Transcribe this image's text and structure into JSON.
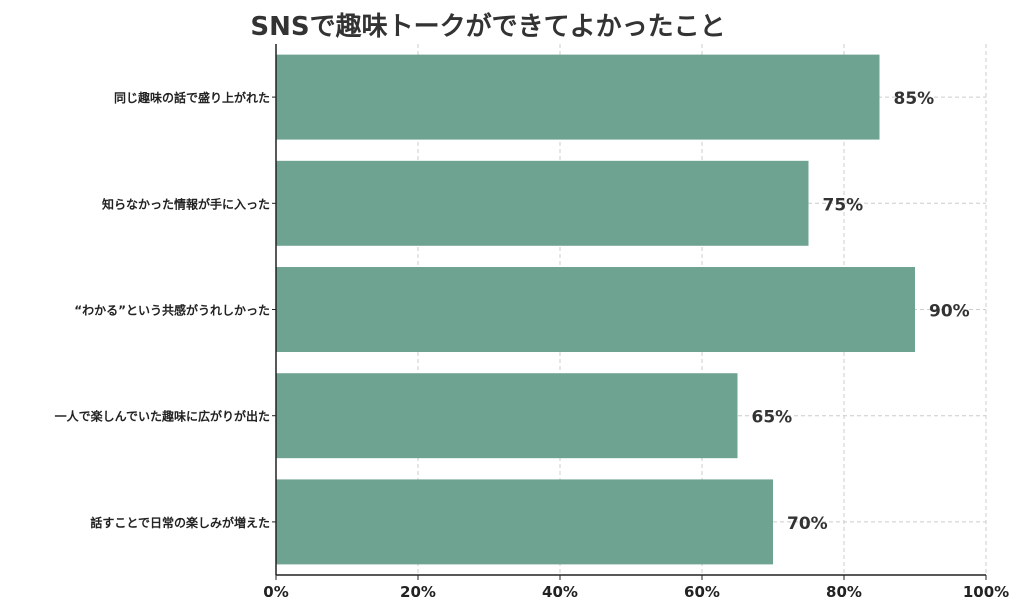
{
  "chart_data": {
    "type": "bar",
    "orientation": "horizontal",
    "title": "SNSで趣味トークができてよかったこと",
    "xlabel": "",
    "ylabel": "",
    "categories": [
      "同じ趣味の話で盛り上がれた",
      "知らなかった情報が手に入った",
      "“わかる”という共感がうれしかった",
      "一人で楽しんでいた趣味に広がりが出た",
      "話すことで日常の楽しみが増えた"
    ],
    "values": [
      85,
      75,
      90,
      65,
      70
    ],
    "value_labels": [
      "85%",
      "75%",
      "90%",
      "65%",
      "70%"
    ],
    "xlim": [
      0,
      100
    ],
    "x_ticks": [
      0,
      20,
      40,
      60,
      80,
      100
    ],
    "x_tick_labels": [
      "0%",
      "20%",
      "40%",
      "60%",
      "80%",
      "100%"
    ],
    "bar_color": "#6ea391",
    "grid": true,
    "grid_style": "dashed",
    "legend": "none"
  }
}
